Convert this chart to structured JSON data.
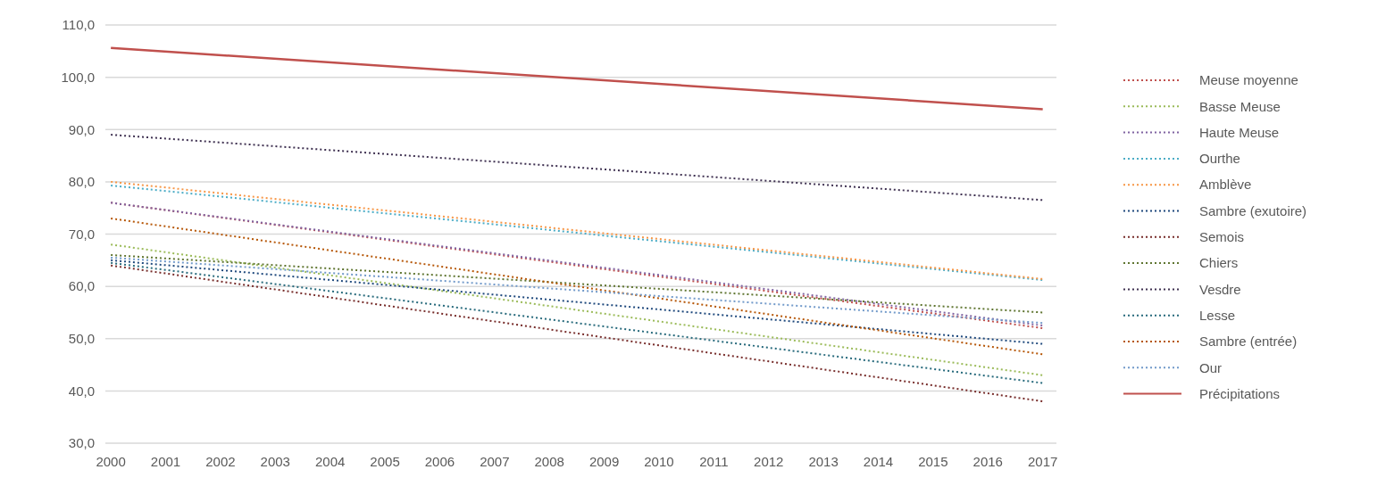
{
  "chart_data": {
    "type": "line",
    "xlim": [
      1999.9,
      2017.25
    ],
    "ylim": [
      30,
      110
    ],
    "xticks": [
      {
        "value": 2000,
        "label": "2000"
      },
      {
        "value": 2001,
        "label": "2001"
      },
      {
        "value": 2002,
        "label": "2002"
      },
      {
        "value": 2003,
        "label": "2003"
      },
      {
        "value": 2004,
        "label": "2004"
      },
      {
        "value": 2005,
        "label": "2005"
      },
      {
        "value": 2006,
        "label": "2006"
      },
      {
        "value": 2007,
        "label": "2007"
      },
      {
        "value": 2008,
        "label": "2008"
      },
      {
        "value": 2009,
        "label": "2009"
      },
      {
        "value": 2010,
        "label": "2010"
      },
      {
        "value": 2011,
        "label": "2011"
      },
      {
        "value": 2012,
        "label": "2012"
      },
      {
        "value": 2013,
        "label": "2013"
      },
      {
        "value": 2014,
        "label": "2014"
      },
      {
        "value": 2015,
        "label": "2015"
      },
      {
        "value": 2016,
        "label": "2016"
      },
      {
        "value": 2017,
        "label": "2017"
      }
    ],
    "yticks": [
      {
        "value": 30,
        "label": "30,0"
      },
      {
        "value": 40,
        "label": "40,0"
      },
      {
        "value": 50,
        "label": "50,0"
      },
      {
        "value": 60,
        "label": "60,0"
      },
      {
        "value": 70,
        "label": "70,0"
      },
      {
        "value": 80,
        "label": "80,0"
      },
      {
        "value": 90,
        "label": "90,0"
      },
      {
        "value": 100,
        "label": "100,0"
      },
      {
        "value": 110,
        "label": "110,0"
      }
    ],
    "grid": "y",
    "legend": "right",
    "x": [
      2000,
      2017
    ],
    "series": [
      {
        "name": "Meuse moyenne",
        "color": "#c0504d",
        "line_style": "dotted",
        "values": [
          76,
          52
        ]
      },
      {
        "name": "Basse Meuse",
        "color": "#9bbb59",
        "line_style": "dotted",
        "values": [
          68,
          43
        ]
      },
      {
        "name": "Haute Meuse",
        "color": "#8064a2",
        "line_style": "dotted",
        "values": [
          76,
          52.5
        ]
      },
      {
        "name": "Ourthe",
        "color": "#4bacc6",
        "line_style": "dotted",
        "values": [
          79.3,
          61.2
        ]
      },
      {
        "name": "Amblève",
        "color": "#f79646",
        "line_style": "dotted",
        "values": [
          80,
          61.4
        ]
      },
      {
        "name": "Sambre (exutoire)",
        "color": "#1f497d",
        "line_style": "dotted",
        "values": [
          65,
          49
        ]
      },
      {
        "name": "Semois",
        "color": "#772c2a",
        "line_style": "dotted",
        "values": [
          64,
          38
        ]
      },
      {
        "name": "Chiers",
        "color": "#5f7530",
        "line_style": "dotted",
        "values": [
          66,
          55
        ]
      },
      {
        "name": "Vesdre",
        "color": "#3f3151",
        "line_style": "dotted",
        "values": [
          89,
          76.5
        ]
      },
      {
        "name": "Lesse",
        "color": "#276a7c",
        "line_style": "dotted",
        "values": [
          64.5,
          41.5
        ]
      },
      {
        "name": "Sambre (entrée)",
        "color": "#b65708",
        "line_style": "dotted",
        "values": [
          73,
          47
        ]
      },
      {
        "name": "Our",
        "color": "#729aca",
        "line_style": "dotted",
        "values": [
          65.5,
          53
        ]
      },
      {
        "name": "Précipitations",
        "color": "#c0504d",
        "line_style": "solid",
        "values": [
          105.6,
          93.9
        ]
      }
    ]
  }
}
